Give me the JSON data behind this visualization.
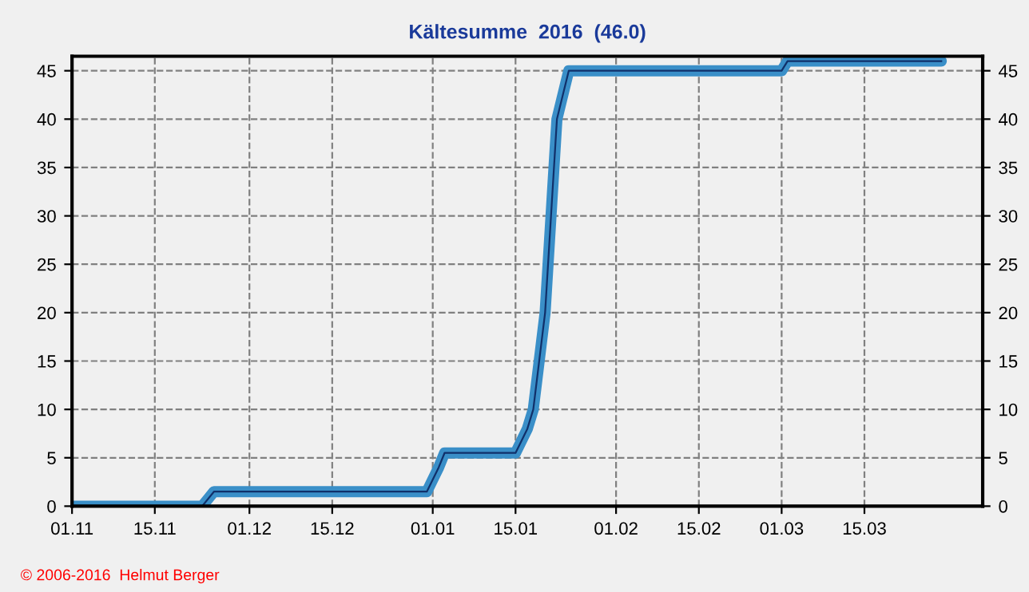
{
  "chart_data": {
    "type": "line",
    "title": "Kältesumme  2016  (46.0)",
    "x": [
      "2016-11-01",
      "2016-11-23",
      "2016-11-25",
      "2016-12-31",
      "2017-01-02",
      "2017-01-03",
      "2017-01-15",
      "2017-01-17",
      "2017-01-18",
      "2017-01-20",
      "2017-01-22",
      "2017-01-24",
      "2017-03-01",
      "2017-03-02",
      "2017-03-28"
    ],
    "series": [
      {
        "color": "#3a8fc8",
        "values": [
          0,
          0,
          1.5,
          1.5,
          4,
          5.5,
          5.5,
          8,
          10,
          20,
          40,
          45,
          45,
          46,
          46
        ]
      }
    ],
    "xlim": [
      "2016-11-01",
      "2017-04-04"
    ],
    "xticks": [
      {
        "value": "2016-11-01",
        "label": "01.11"
      },
      {
        "value": "2016-11-15",
        "label": "15.11"
      },
      {
        "value": "2016-12-01",
        "label": "01.12"
      },
      {
        "value": "2016-12-15",
        "label": "15.12"
      },
      {
        "value": "2017-01-01",
        "label": "01.01"
      },
      {
        "value": "2017-01-15",
        "label": "15.01"
      },
      {
        "value": "2017-02-01",
        "label": "01.02"
      },
      {
        "value": "2017-02-15",
        "label": "15.02"
      },
      {
        "value": "2017-03-01",
        "label": "01.03"
      },
      {
        "value": "2017-03-15",
        "label": "15.03"
      }
    ],
    "ylim": [
      0,
      46.5
    ],
    "yticks": [
      0,
      5,
      10,
      15,
      20,
      25,
      30,
      35,
      40,
      45
    ],
    "y2lim": [
      0,
      46.5
    ],
    "y2ticks": [
      0,
      5,
      10,
      15,
      20,
      25,
      30,
      35,
      40,
      45
    ],
    "grid": true,
    "marker": "none",
    "line_style": "solid",
    "annotations": [
      "© 2006-2016  Helmut Berger"
    ]
  }
}
